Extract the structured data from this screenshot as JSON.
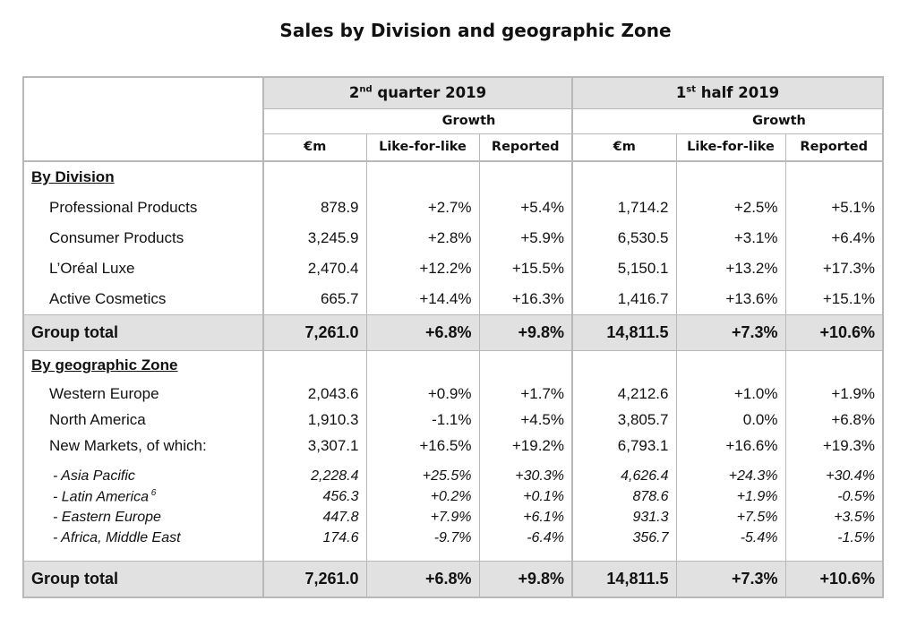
{
  "title": "Sales by Division and geographic Zone",
  "header": {
    "q2_pre": "2",
    "q2_sup": "nd",
    "q2_post": " quarter 2019",
    "h1_pre": "1",
    "h1_sup": "st",
    "h1_post": " half 2019",
    "growth": "Growth",
    "cols": [
      "€m",
      "Like-for-like",
      "Reported",
      "€m",
      "Like-for-like",
      "Reported"
    ]
  },
  "division": {
    "heading": "By Division",
    "rows": [
      [
        "Professional Products",
        "878.9",
        "+2.7%",
        "+5.4%",
        "1,714.2",
        "+2.5%",
        "+5.1%"
      ],
      [
        "Consumer Products",
        "3,245.9",
        "+2.8%",
        "+5.9%",
        "6,530.5",
        "+3.1%",
        "+6.4%"
      ],
      [
        "L’Oréal Luxe",
        "2,470.4",
        "+12.2%",
        "+15.5%",
        "5,150.1",
        "+13.2%",
        "+17.3%"
      ],
      [
        "Active Cosmetics",
        "665.7",
        "+14.4%",
        "+16.3%",
        "1,416.7",
        "+13.6%",
        "+15.1%"
      ]
    ],
    "total": [
      "Group total",
      "7,261.0",
      "+6.8%",
      "+9.8%",
      "14,811.5",
      "+7.3%",
      "+10.6%"
    ]
  },
  "zone": {
    "heading": "By geographic Zone",
    "rows": [
      [
        "Western Europe",
        "2,043.6",
        "+0.9%",
        "+1.7%",
        "4,212.6",
        "+1.0%",
        "+1.9%"
      ],
      [
        "North America",
        "1,910.3",
        "-1.1%",
        "+4.5%",
        "3,805.7",
        "0.0%",
        "+6.8%"
      ],
      [
        "New Markets, of which:",
        "3,307.1",
        "+16.5%",
        "+19.2%",
        "6,793.1",
        "+16.6%",
        "+19.3%"
      ]
    ],
    "sub_rows": [
      [
        "- Asia Pacific",
        "2,228.4",
        "+25.5%",
        "+30.3%",
        "4,626.4",
        "+24.3%",
        "+30.4%"
      ],
      [
        "- Latin America",
        "456.3",
        "+0.2%",
        "+0.1%",
        "878.6",
        "+1.9%",
        "-0.5%"
      ],
      [
        "- Eastern Europe",
        "447.8",
        "+7.9%",
        "+6.1%",
        "931.3",
        "+7.5%",
        "+3.5%"
      ],
      [
        "- Africa, Middle East",
        "174.6",
        "-9.7%",
        "-6.4%",
        "356.7",
        "-5.4%",
        "-1.5%"
      ]
    ],
    "latam_note": "6",
    "total": [
      "Group total",
      "7,261.0",
      "+6.8%",
      "+9.8%",
      "14,811.5",
      "+7.3%",
      "+10.6%"
    ]
  }
}
